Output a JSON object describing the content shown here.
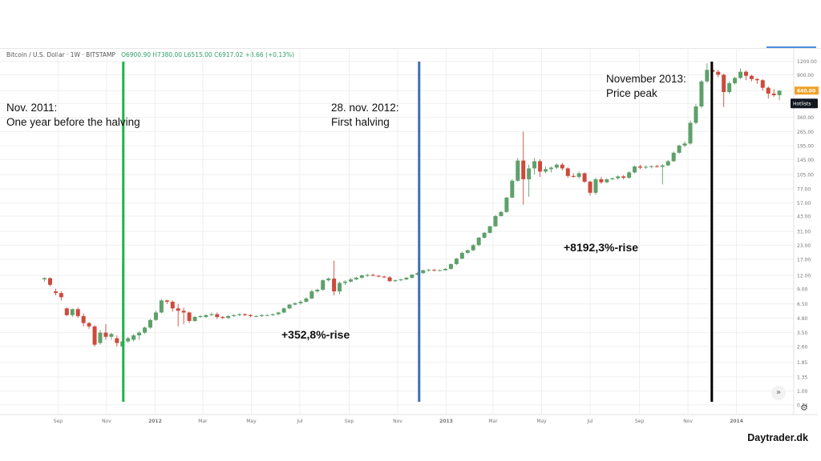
{
  "header": {
    "symbol": "Bitcoin / U.S. Dollar · 1W · BITSTAMP",
    "o": "O6900.90",
    "h": "H7380.00",
    "l": "L6515.00",
    "c": "C6917.02",
    "chg": "+8.66 (+0.13%)"
  },
  "annotations": {
    "nov2011_line1": "Nov. 2011:",
    "nov2011_line2": "One year before the halving",
    "halving_line1": "28. nov. 2012:",
    "halving_line2": "First halving",
    "peak_line1": "November 2013:",
    "peak_line2": "Price peak",
    "rise1": "+352,8%-rise",
    "rise2": "+8192,3%-rise"
  },
  "brand": "Daytrader.dk",
  "colors": {
    "up": "#5fa06a",
    "down": "#cd4a3d",
    "green_line": "#1fb34a",
    "blue_line": "#3b6fb6",
    "black_line": "#000000",
    "grid": "#efefef",
    "label_bg": "#131722",
    "price_tag": "#f0a22a"
  },
  "chart_data": {
    "type": "candlestick",
    "scale": "log",
    "ylim": [
      0.6,
      1600
    ],
    "y_ticks": [
      "1600.00",
      "1200.00",
      "900.00",
      "640.00",
      "485.00",
      "360.00",
      "265.00",
      "195.00",
      "145.00",
      "105.00",
      "77.00",
      "57.00",
      "43.00",
      "31.00",
      "23.00",
      "17.00",
      "12.00",
      "9.00",
      "6.50",
      "4.80",
      "3.50",
      "2.60",
      "1.85",
      "1.35",
      "1.00",
      "0.74"
    ],
    "x_ticks": [
      {
        "label": "Sep",
        "date": "2011-09-01"
      },
      {
        "label": "Nov",
        "date": "2011-11-01"
      },
      {
        "label": "2012",
        "date": "2012-01-01"
      },
      {
        "label": "Mar",
        "date": "2012-03-01"
      },
      {
        "label": "May",
        "date": "2012-05-01"
      },
      {
        "label": "Jul",
        "date": "2012-07-01"
      },
      {
        "label": "Sep",
        "date": "2012-09-01"
      },
      {
        "label": "Nov",
        "date": "2012-11-01"
      },
      {
        "label": "2013",
        "date": "2013-01-01"
      },
      {
        "label": "Mar",
        "date": "2013-03-01"
      },
      {
        "label": "May",
        "date": "2013-05-01"
      },
      {
        "label": "Jul",
        "date": "2013-07-01"
      },
      {
        "label": "Sep",
        "date": "2013-09-01"
      },
      {
        "label": "Nov",
        "date": "2013-11-01"
      },
      {
        "label": "2014",
        "date": "2014-01-01"
      }
    ],
    "current_price_label": "640.00",
    "hotlists_label": "Hotlists",
    "vertical_lines": [
      {
        "date": "2011-11-22",
        "color": "#1fb34a"
      },
      {
        "date": "2012-11-28",
        "color": "#3b6fb6"
      },
      {
        "date": "2013-12-01",
        "color": "#000000"
      }
    ],
    "candles": [
      {
        "d": "2011-08-15",
        "o": 11.0,
        "h": 11.5,
        "l": 10.5,
        "c": 11.3
      },
      {
        "d": "2011-08-22",
        "o": 11.3,
        "h": 11.5,
        "l": 9.5,
        "c": 9.8
      },
      {
        "d": "2011-08-29",
        "o": 8.5,
        "h": 9.0,
        "l": 7.8,
        "c": 8.2
      },
      {
        "d": "2011-09-05",
        "o": 8.2,
        "h": 8.5,
        "l": 7.0,
        "c": 7.5
      },
      {
        "d": "2011-09-12",
        "o": 5.9,
        "h": 6.0,
        "l": 5.0,
        "c": 5.1
      },
      {
        "d": "2011-09-19",
        "o": 5.1,
        "h": 5.9,
        "l": 4.9,
        "c": 5.8
      },
      {
        "d": "2011-09-26",
        "o": 5.8,
        "h": 6.0,
        "l": 4.8,
        "c": 5.0
      },
      {
        "d": "2011-10-03",
        "o": 5.0,
        "h": 5.3,
        "l": 4.0,
        "c": 4.3
      },
      {
        "d": "2011-10-10",
        "o": 4.3,
        "h": 4.4,
        "l": 3.8,
        "c": 4.0
      },
      {
        "d": "2011-10-17",
        "o": 4.0,
        "h": 4.1,
        "l": 2.6,
        "c": 2.7
      },
      {
        "d": "2011-10-24",
        "o": 2.8,
        "h": 3.7,
        "l": 2.7,
        "c": 3.5
      },
      {
        "d": "2011-10-31",
        "o": 3.5,
        "h": 4.2,
        "l": 3.0,
        "c": 3.2
      },
      {
        "d": "2011-11-07",
        "o": 3.2,
        "h": 3.5,
        "l": 3.0,
        "c": 3.4
      },
      {
        "d": "2011-11-14",
        "o": 3.1,
        "h": 3.3,
        "l": 2.6,
        "c": 2.8
      },
      {
        "d": "2011-11-21",
        "o": 2.6,
        "h": 15.0,
        "l": 2.5,
        "c": 2.9
      },
      {
        "d": "2011-11-28",
        "o": 2.9,
        "h": 3.2,
        "l": 2.8,
        "c": 3.1
      },
      {
        "d": "2011-12-05",
        "o": 3.0,
        "h": 3.4,
        "l": 2.9,
        "c": 3.3
      },
      {
        "d": "2011-12-12",
        "o": 3.3,
        "h": 3.6,
        "l": 3.0,
        "c": 3.5
      },
      {
        "d": "2011-12-19",
        "o": 3.5,
        "h": 4.0,
        "l": 3.4,
        "c": 3.9
      },
      {
        "d": "2011-12-26",
        "o": 3.9,
        "h": 4.7,
        "l": 3.8,
        "c": 4.6
      },
      {
        "d": "2012-01-02",
        "o": 4.6,
        "h": 5.6,
        "l": 4.5,
        "c": 5.4
      },
      {
        "d": "2012-01-09",
        "o": 5.4,
        "h": 7.2,
        "l": 5.3,
        "c": 7.0
      },
      {
        "d": "2012-01-16",
        "o": 7.0,
        "h": 7.1,
        "l": 6.5,
        "c": 6.8
      },
      {
        "d": "2012-01-23",
        "o": 6.8,
        "h": 7.0,
        "l": 5.5,
        "c": 5.9
      },
      {
        "d": "2012-01-30",
        "o": 5.9,
        "h": 6.5,
        "l": 4.0,
        "c": 5.6
      },
      {
        "d": "2012-02-06",
        "o": 5.6,
        "h": 6.0,
        "l": 4.2,
        "c": 5.4
      },
      {
        "d": "2012-02-13",
        "o": 5.4,
        "h": 5.5,
        "l": 4.3,
        "c": 4.5
      },
      {
        "d": "2012-02-20",
        "o": 4.5,
        "h": 5.0,
        "l": 4.4,
        "c": 4.9
      },
      {
        "d": "2012-02-27",
        "o": 4.9,
        "h": 5.1,
        "l": 4.8,
        "c": 5.0
      },
      {
        "d": "2012-03-05",
        "o": 4.9,
        "h": 5.2,
        "l": 4.8,
        "c": 5.1
      },
      {
        "d": "2012-03-12",
        "o": 5.1,
        "h": 5.4,
        "l": 5.0,
        "c": 5.2
      },
      {
        "d": "2012-03-19",
        "o": 5.2,
        "h": 5.4,
        "l": 4.7,
        "c": 4.9
      },
      {
        "d": "2012-03-26",
        "o": 4.9,
        "h": 5.0,
        "l": 4.7,
        "c": 4.8
      },
      {
        "d": "2012-04-02",
        "o": 4.8,
        "h": 5.1,
        "l": 4.7,
        "c": 5.0
      },
      {
        "d": "2012-04-09",
        "o": 5.0,
        "h": 5.2,
        "l": 4.9,
        "c": 5.1
      },
      {
        "d": "2012-04-16",
        "o": 5.1,
        "h": 5.3,
        "l": 5.0,
        "c": 5.2
      },
      {
        "d": "2012-04-23",
        "o": 5.2,
        "h": 5.3,
        "l": 5.0,
        "c": 5.1
      },
      {
        "d": "2012-04-30",
        "o": 5.1,
        "h": 5.2,
        "l": 4.9,
        "c": 5.0
      },
      {
        "d": "2012-05-07",
        "o": 5.0,
        "h": 5.1,
        "l": 4.9,
        "c": 5.0
      },
      {
        "d": "2012-05-14",
        "o": 5.0,
        "h": 5.2,
        "l": 4.9,
        "c": 5.1
      },
      {
        "d": "2012-05-21",
        "o": 5.1,
        "h": 5.2,
        "l": 5.0,
        "c": 5.1
      },
      {
        "d": "2012-05-28",
        "o": 5.1,
        "h": 5.3,
        "l": 5.0,
        "c": 5.2
      },
      {
        "d": "2012-06-04",
        "o": 5.2,
        "h": 5.5,
        "l": 5.1,
        "c": 5.4
      },
      {
        "d": "2012-06-11",
        "o": 5.4,
        "h": 6.0,
        "l": 5.3,
        "c": 5.9
      },
      {
        "d": "2012-06-18",
        "o": 5.9,
        "h": 6.5,
        "l": 5.8,
        "c": 6.4
      },
      {
        "d": "2012-06-25",
        "o": 6.4,
        "h": 6.7,
        "l": 6.3,
        "c": 6.6
      },
      {
        "d": "2012-07-02",
        "o": 6.6,
        "h": 7.0,
        "l": 6.4,
        "c": 6.8
      },
      {
        "d": "2012-07-09",
        "o": 6.8,
        "h": 7.5,
        "l": 6.7,
        "c": 7.3
      },
      {
        "d": "2012-07-16",
        "o": 7.3,
        "h": 8.8,
        "l": 7.2,
        "c": 8.5
      },
      {
        "d": "2012-07-23",
        "o": 8.5,
        "h": 9.0,
        "l": 8.3,
        "c": 8.8
      },
      {
        "d": "2012-07-30",
        "o": 8.8,
        "h": 11.0,
        "l": 8.6,
        "c": 10.8
      },
      {
        "d": "2012-08-06",
        "o": 10.8,
        "h": 11.5,
        "l": 10.5,
        "c": 11.2
      },
      {
        "d": "2012-08-13",
        "o": 11.2,
        "h": 16.5,
        "l": 7.8,
        "c": 8.5
      },
      {
        "d": "2012-08-20",
        "o": 8.5,
        "h": 10.5,
        "l": 8.0,
        "c": 10.2
      },
      {
        "d": "2012-08-27",
        "o": 10.2,
        "h": 10.8,
        "l": 9.8,
        "c": 10.5
      },
      {
        "d": "2012-09-03",
        "o": 10.5,
        "h": 11.3,
        "l": 10.3,
        "c": 11.0
      },
      {
        "d": "2012-09-10",
        "o": 11.0,
        "h": 11.6,
        "l": 10.8,
        "c": 11.4
      },
      {
        "d": "2012-09-17",
        "o": 11.4,
        "h": 12.2,
        "l": 11.2,
        "c": 12.0
      },
      {
        "d": "2012-09-24",
        "o": 12.0,
        "h": 12.4,
        "l": 11.6,
        "c": 12.1
      },
      {
        "d": "2012-10-01",
        "o": 12.1,
        "h": 12.5,
        "l": 11.8,
        "c": 11.9
      },
      {
        "d": "2012-10-08",
        "o": 11.9,
        "h": 12.1,
        "l": 11.5,
        "c": 11.7
      },
      {
        "d": "2012-10-15",
        "o": 11.7,
        "h": 11.9,
        "l": 11.3,
        "c": 11.5
      },
      {
        "d": "2012-10-22",
        "o": 11.5,
        "h": 11.8,
        "l": 10.4,
        "c": 10.6
      },
      {
        "d": "2012-10-29",
        "o": 10.6,
        "h": 11.0,
        "l": 10.4,
        "c": 10.8
      },
      {
        "d": "2012-11-05",
        "o": 10.8,
        "h": 11.2,
        "l": 10.6,
        "c": 11.0
      },
      {
        "d": "2012-11-12",
        "o": 11.0,
        "h": 11.6,
        "l": 10.8,
        "c": 11.4
      },
      {
        "d": "2012-11-19",
        "o": 11.4,
        "h": 12.3,
        "l": 11.2,
        "c": 12.2
      },
      {
        "d": "2012-11-26",
        "o": 12.2,
        "h": 12.8,
        "l": 12.0,
        "c": 12.6
      },
      {
        "d": "2012-12-03",
        "o": 12.6,
        "h": 13.6,
        "l": 12.4,
        "c": 13.4
      },
      {
        "d": "2012-12-10",
        "o": 13.4,
        "h": 13.8,
        "l": 13.0,
        "c": 13.5
      },
      {
        "d": "2012-12-17",
        "o": 13.5,
        "h": 13.8,
        "l": 13.1,
        "c": 13.3
      },
      {
        "d": "2012-12-24",
        "o": 13.3,
        "h": 13.6,
        "l": 13.2,
        "c": 13.4
      },
      {
        "d": "2012-12-31",
        "o": 13.4,
        "h": 14.0,
        "l": 13.3,
        "c": 13.8
      },
      {
        "d": "2013-01-07",
        "o": 13.8,
        "h": 15.5,
        "l": 13.6,
        "c": 15.3
      },
      {
        "d": "2013-01-14",
        "o": 15.3,
        "h": 17.5,
        "l": 15.0,
        "c": 17.2
      },
      {
        "d": "2013-01-21",
        "o": 17.2,
        "h": 20.0,
        "l": 17.0,
        "c": 19.5
      },
      {
        "d": "2013-01-28",
        "o": 19.5,
        "h": 21.0,
        "l": 19.0,
        "c": 20.6
      },
      {
        "d": "2013-02-04",
        "o": 20.6,
        "h": 23.5,
        "l": 20.2,
        "c": 23.0
      },
      {
        "d": "2013-02-11",
        "o": 23.0,
        "h": 27.5,
        "l": 22.5,
        "c": 27.0
      },
      {
        "d": "2013-02-18",
        "o": 27.0,
        "h": 30.5,
        "l": 26.5,
        "c": 30.0
      },
      {
        "d": "2013-02-25",
        "o": 30.0,
        "h": 35.0,
        "l": 29.5,
        "c": 34.5
      },
      {
        "d": "2013-03-04",
        "o": 34.5,
        "h": 44.0,
        "l": 34.0,
        "c": 43.0
      },
      {
        "d": "2013-03-11",
        "o": 43.0,
        "h": 48.0,
        "l": 42.5,
        "c": 47.0
      },
      {
        "d": "2013-03-18",
        "o": 47.0,
        "h": 65.0,
        "l": 46.0,
        "c": 64.0
      },
      {
        "d": "2013-03-25",
        "o": 64.0,
        "h": 95.0,
        "l": 63.0,
        "c": 92.0
      },
      {
        "d": "2013-04-01",
        "o": 92.0,
        "h": 150.0,
        "l": 90.0,
        "c": 142.0
      },
      {
        "d": "2013-04-08",
        "o": 142.0,
        "h": 265.0,
        "l": 55.0,
        "c": 95.0
      },
      {
        "d": "2013-04-15",
        "o": 95.0,
        "h": 130.0,
        "l": 65.0,
        "c": 120.0
      },
      {
        "d": "2013-04-22",
        "o": 120.0,
        "h": 150.0,
        "l": 105.0,
        "c": 140.0
      },
      {
        "d": "2013-04-29",
        "o": 140.0,
        "h": 146.0,
        "l": 100.0,
        "c": 112.0
      },
      {
        "d": "2013-05-06",
        "o": 112.0,
        "h": 125.0,
        "l": 108.0,
        "c": 118.0
      },
      {
        "d": "2013-05-13",
        "o": 118.0,
        "h": 125.0,
        "l": 110.0,
        "c": 122.0
      },
      {
        "d": "2013-05-20",
        "o": 122.0,
        "h": 133.0,
        "l": 118.0,
        "c": 130.0
      },
      {
        "d": "2013-05-27",
        "o": 130.0,
        "h": 135.0,
        "l": 115.0,
        "c": 120.0
      },
      {
        "d": "2013-06-03",
        "o": 120.0,
        "h": 123.0,
        "l": 98.0,
        "c": 102.0
      },
      {
        "d": "2013-06-10",
        "o": 102.0,
        "h": 108.0,
        "l": 98.0,
        "c": 100.0
      },
      {
        "d": "2013-06-17",
        "o": 100.0,
        "h": 112.0,
        "l": 96.0,
        "c": 108.0
      },
      {
        "d": "2013-06-24",
        "o": 108.0,
        "h": 110.0,
        "l": 88.0,
        "c": 90.0
      },
      {
        "d": "2013-07-01",
        "o": 90.0,
        "h": 92.0,
        "l": 67.0,
        "c": 71.0
      },
      {
        "d": "2013-07-08",
        "o": 71.0,
        "h": 98.0,
        "l": 68.0,
        "c": 95.0
      },
      {
        "d": "2013-07-15",
        "o": 95.0,
        "h": 100.0,
        "l": 86.0,
        "c": 89.0
      },
      {
        "d": "2013-07-22",
        "o": 89.0,
        "h": 97.0,
        "l": 87.0,
        "c": 95.0
      },
      {
        "d": "2013-07-29",
        "o": 95.0,
        "h": 98.0,
        "l": 93.0,
        "c": 97.0
      },
      {
        "d": "2013-08-05",
        "o": 97.0,
        "h": 103.0,
        "l": 94.0,
        "c": 101.0
      },
      {
        "d": "2013-08-12",
        "o": 101.0,
        "h": 104.0,
        "l": 95.0,
        "c": 98.0
      },
      {
        "d": "2013-08-19",
        "o": 98.0,
        "h": 113.0,
        "l": 96.0,
        "c": 110.0
      },
      {
        "d": "2013-08-26",
        "o": 110.0,
        "h": 128.0,
        "l": 108.0,
        "c": 125.0
      },
      {
        "d": "2013-09-02",
        "o": 125.0,
        "h": 130.0,
        "l": 118.0,
        "c": 122.0
      },
      {
        "d": "2013-09-09",
        "o": 122.0,
        "h": 128.0,
        "l": 119.0,
        "c": 124.0
      },
      {
        "d": "2013-09-16",
        "o": 124.0,
        "h": 128.0,
        "l": 120.0,
        "c": 126.0
      },
      {
        "d": "2013-09-23",
        "o": 126.0,
        "h": 130.0,
        "l": 122.0,
        "c": 124.0
      },
      {
        "d": "2013-09-30",
        "o": 124.0,
        "h": 132.0,
        "l": 85.0,
        "c": 128.0
      },
      {
        "d": "2013-10-07",
        "o": 128.0,
        "h": 143.0,
        "l": 126.0,
        "c": 140.0
      },
      {
        "d": "2013-10-14",
        "o": 140.0,
        "h": 172.0,
        "l": 138.0,
        "c": 168.0
      },
      {
        "d": "2013-10-21",
        "o": 168.0,
        "h": 200.0,
        "l": 165.0,
        "c": 196.0
      },
      {
        "d": "2013-10-28",
        "o": 196.0,
        "h": 215.0,
        "l": 190.0,
        "c": 205.0
      },
      {
        "d": "2013-11-04",
        "o": 205.0,
        "h": 335.0,
        "l": 200.0,
        "c": 320.0
      },
      {
        "d": "2013-11-11",
        "o": 320.0,
        "h": 480.0,
        "l": 310.0,
        "c": 455.0
      },
      {
        "d": "2013-11-18",
        "o": 455.0,
        "h": 800.0,
        "l": 440.0,
        "c": 780.0
      },
      {
        "d": "2013-11-25",
        "o": 780.0,
        "h": 1150.0,
        "l": 760.0,
        "c": 1000.0
      },
      {
        "d": "2013-12-02",
        "o": 1000.0,
        "h": 1180.0,
        "l": 800.0,
        "c": 960.0
      },
      {
        "d": "2013-12-09",
        "o": 960.0,
        "h": 1000.0,
        "l": 850.0,
        "c": 900.0
      },
      {
        "d": "2013-12-16",
        "o": 900.0,
        "h": 920.0,
        "l": 450.0,
        "c": 620.0
      },
      {
        "d": "2013-12-23",
        "o": 620.0,
        "h": 780.0,
        "l": 600.0,
        "c": 750.0
      },
      {
        "d": "2013-12-30",
        "o": 750.0,
        "h": 860.0,
        "l": 730.0,
        "c": 840.0
      },
      {
        "d": "2014-01-06",
        "o": 840.0,
        "h": 1030.0,
        "l": 820.0,
        "c": 960.0
      },
      {
        "d": "2014-01-13",
        "o": 960.0,
        "h": 990.0,
        "l": 800.0,
        "c": 880.0
      },
      {
        "d": "2014-01-20",
        "o": 880.0,
        "h": 900.0,
        "l": 780.0,
        "c": 820.0
      },
      {
        "d": "2014-01-27",
        "o": 820.0,
        "h": 840.0,
        "l": 740.0,
        "c": 800.0
      },
      {
        "d": "2014-02-03",
        "o": 800.0,
        "h": 820.0,
        "l": 640.0,
        "c": 680.0
      },
      {
        "d": "2014-02-10",
        "o": 680.0,
        "h": 700.0,
        "l": 540.0,
        "c": 600.0
      },
      {
        "d": "2014-02-17",
        "o": 600.0,
        "h": 660.0,
        "l": 560.0,
        "c": 580.0
      },
      {
        "d": "2014-02-24",
        "o": 580.0,
        "h": 640.0,
        "l": 520.0,
        "c": 640.0
      }
    ]
  }
}
